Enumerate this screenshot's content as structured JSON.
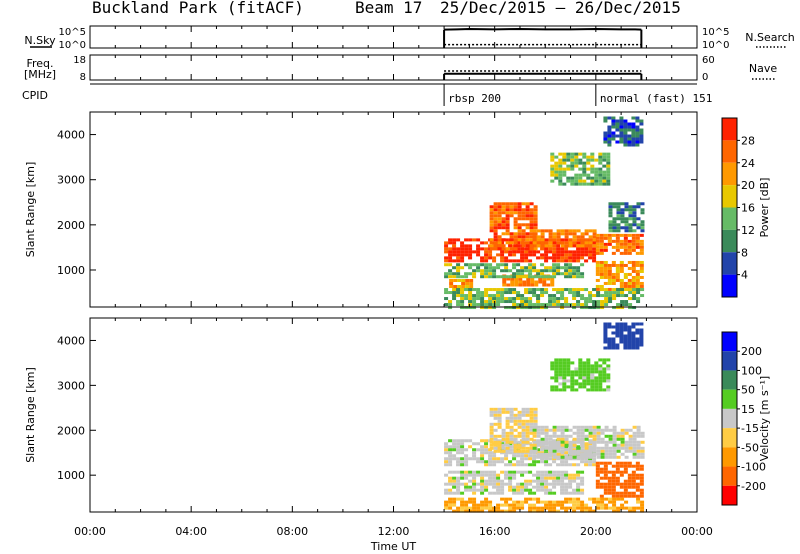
{
  "header": {
    "site": "Buckland Park (fitACF)",
    "beam": "Beam 17",
    "dates": "25/Dec/2015 – 26/Dec/2015"
  },
  "chart_data": [
    {
      "type": "line",
      "panel": "noise",
      "left_label": "N.Sky",
      "left_ticks": [
        "10^5",
        "10^0"
      ],
      "right_ticks": [
        "10^5",
        "10^0"
      ],
      "legend": "N.Search",
      "series": [
        {
          "name": "N.Sky",
          "x": [
            14.0,
            14.5,
            15.0,
            16.0,
            17.0,
            18.0,
            19.0,
            20.0,
            21.0,
            21.5,
            21.8
          ],
          "y": [
            4.8,
            4.9,
            5.0,
            4.9,
            5.0,
            4.9,
            4.9,
            5.0,
            4.9,
            4.9,
            4.8
          ]
        },
        {
          "name": "N.Search",
          "x": [
            14.0,
            21.8
          ],
          "y": [
            0.1,
            0.1
          ]
        }
      ],
      "xlim": [
        0,
        24
      ]
    },
    {
      "type": "line",
      "panel": "frequency",
      "left_label": "Freq. [MHz]",
      "left_ticks": [
        "18",
        "8"
      ],
      "right_ticks": [
        "60",
        "0"
      ],
      "legend": "Nave",
      "series": [
        {
          "name": "Freq.",
          "x": [
            14.0,
            21.8
          ],
          "y": [
            10.0,
            10.0
          ]
        },
        {
          "name": "Nave",
          "x": [
            14.0,
            21.8
          ],
          "y": [
            20,
            20
          ]
        }
      ],
      "xlim": [
        0,
        24
      ]
    },
    {
      "type": "table",
      "panel": "cpid",
      "label": "CPID",
      "segments": [
        {
          "start": 14.0,
          "end": 20.0,
          "text": "rbsp 200"
        },
        {
          "start": 20.0,
          "end": 21.8,
          "text": "normal (fast) 151"
        }
      ]
    },
    {
      "type": "heatmap",
      "panel": "power",
      "ylabel": "Slant Range [km]",
      "ylim": [
        180,
        4500
      ],
      "yticks": [
        1000,
        2000,
        3000,
        4000
      ],
      "colorbar_label": "Power [dB]",
      "colorbar_ticks": [
        4,
        8,
        12,
        16,
        20,
        24,
        28
      ],
      "colorbar_range": [
        0,
        32
      ],
      "colors": [
        "#0000ff",
        "#2244aa",
        "#3a8a5a",
        "#66bb66",
        "#e8c800",
        "#ff9900",
        "#ff6600",
        "#ff2200"
      ],
      "regions": [
        {
          "t": [
            14.0,
            20.0
          ],
          "r": [
            1200,
            1700
          ],
          "level": 30
        },
        {
          "t": [
            15.8,
            17.6
          ],
          "r": [
            1500,
            2500
          ],
          "level": 26
        },
        {
          "t": [
            17.5,
            20.0
          ],
          "r": [
            1550,
            1900
          ],
          "level": 24
        },
        {
          "t": [
            20.0,
            21.8
          ],
          "r": [
            1350,
            1800
          ],
          "level": 25
        },
        {
          "t": [
            16.3,
            18.2
          ],
          "r": [
            650,
            900
          ],
          "level": 24
        },
        {
          "t": [
            14.2,
            15.0
          ],
          "r": [
            600,
            800
          ],
          "level": 22
        },
        {
          "t": [
            14.0,
            19.4
          ],
          "r": [
            850,
            1150
          ],
          "level": 14
        },
        {
          "t": [
            20.0,
            21.8
          ],
          "r": [
            600,
            1200
          ],
          "level": 22
        },
        {
          "t": [
            20.5,
            21.8
          ],
          "r": [
            1900,
            2500
          ],
          "level": 9
        },
        {
          "t": [
            18.2,
            20.5
          ],
          "r": [
            2900,
            3600
          ],
          "level": 14
        },
        {
          "t": [
            14.0,
            21.8
          ],
          "r": [
            180,
            600
          ],
          "level": 14
        },
        {
          "t": [
            20.3,
            21.8
          ],
          "r": [
            3800,
            4400
          ],
          "level": 7
        }
      ]
    },
    {
      "type": "heatmap",
      "panel": "velocity",
      "ylabel": "Slant Range [km]",
      "ylim": [
        180,
        4500
      ],
      "yticks": [
        1000,
        2000,
        3000,
        4000
      ],
      "colorbar_label": "Velocity [m s⁻¹]",
      "colorbar_ticks": [
        -200,
        -100,
        -50,
        -15,
        15,
        50,
        100,
        200
      ],
      "colors": [
        "#ff0000",
        "#ff6600",
        "#ff9900",
        "#ffcc44",
        "#c8c8c8",
        "#55cc22",
        "#3a8a5a",
        "#2244aa",
        "#0000ff"
      ],
      "regions": [
        {
          "t": [
            14.0,
            20.0
          ],
          "r": [
            1200,
            1800
          ],
          "level": 0
        },
        {
          "t": [
            15.8,
            17.6
          ],
          "r": [
            1500,
            2500
          ],
          "level": -20
        },
        {
          "t": [
            17.5,
            21.8
          ],
          "r": [
            1400,
            2100
          ],
          "level": 0
        },
        {
          "t": [
            14.0,
            19.4
          ],
          "r": [
            600,
            1100
          ],
          "level": 0
        },
        {
          "t": [
            20.0,
            21.8
          ],
          "r": [
            500,
            1300
          ],
          "level": -120
        },
        {
          "t": [
            18.2,
            20.5
          ],
          "r": [
            2900,
            3600
          ],
          "level": 30
        },
        {
          "t": [
            14.0,
            21.8
          ],
          "r": [
            180,
            500
          ],
          "level": -60
        },
        {
          "t": [
            20.3,
            21.8
          ],
          "r": [
            3800,
            4400
          ],
          "level": 150
        }
      ]
    }
  ],
  "time_axis": {
    "label": "Time UT",
    "ticks": [
      "00:00",
      "04:00",
      "08:00",
      "12:00",
      "16:00",
      "20:00",
      "00:00"
    ]
  }
}
